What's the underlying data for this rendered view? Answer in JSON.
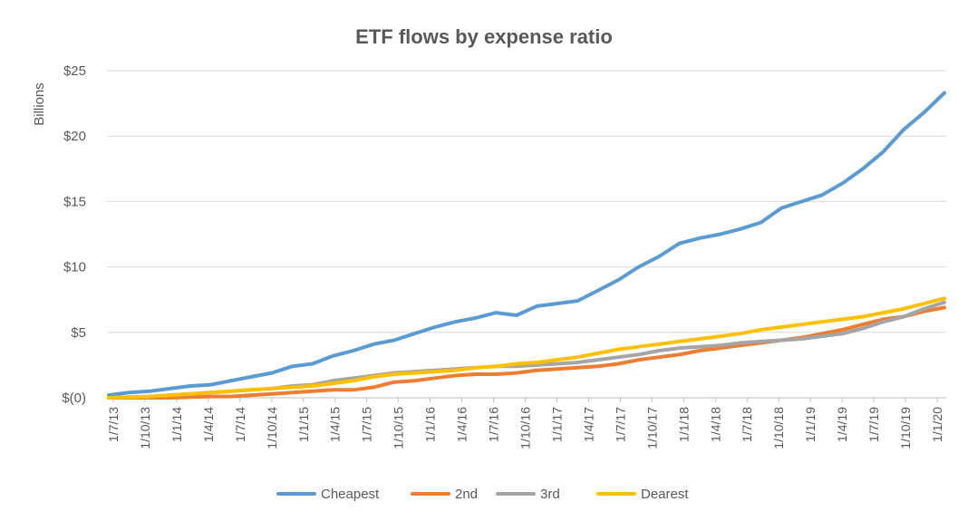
{
  "chart_data": {
    "type": "line",
    "title": "ETF flows by expense ratio",
    "xlabel": "",
    "ylabel": "Billions",
    "ylim": [
      0,
      25
    ],
    "y_ticks": [
      0,
      5,
      10,
      15,
      20,
      25
    ],
    "y_tick_labels": [
      "$(0)",
      "$5",
      "$10",
      "$15",
      "$20",
      "$25"
    ],
    "x_tick_labels": [
      "1/7/13",
      "1/10/13",
      "1/1/14",
      "1/4/14",
      "1/7/14",
      "1/10/14",
      "1/1/15",
      "1/4/15",
      "1/7/15",
      "1/10/15",
      "1/1/16",
      "1/4/16",
      "1/7/16",
      "1/10/16",
      "1/1/17",
      "1/4/17",
      "1/7/17",
      "1/10/17",
      "1/1/18",
      "1/4/18",
      "1/7/18",
      "1/10/18",
      "1/1/19",
      "1/4/19",
      "1/7/19",
      "1/10/19",
      "1/1/20"
    ],
    "legend_position": "bottom",
    "grid": "horizontal",
    "series": [
      {
        "name": "Cheapest",
        "color": "#5B9BD5",
        "values": [
          0.2,
          0.4,
          0.5,
          0.7,
          0.9,
          1.0,
          1.3,
          1.6,
          1.9,
          2.4,
          2.6,
          3.2,
          3.6,
          4.1,
          4.4,
          4.9,
          5.4,
          5.8,
          6.1,
          6.5,
          6.3,
          7.0,
          7.2,
          7.4,
          8.2,
          9.0,
          10.0,
          10.8,
          11.8,
          12.2,
          12.5,
          12.9,
          13.4,
          14.5,
          15.0,
          15.5,
          16.4,
          17.5,
          18.8,
          20.5,
          21.8,
          23.3
        ]
      },
      {
        "name": "2nd",
        "color": "#ED7D31",
        "values": [
          0.0,
          0.0,
          0.0,
          0.0,
          0.05,
          0.1,
          0.1,
          0.2,
          0.3,
          0.4,
          0.5,
          0.6,
          0.6,
          0.8,
          1.2,
          1.3,
          1.5,
          1.7,
          1.8,
          1.8,
          1.9,
          2.1,
          2.2,
          2.3,
          2.4,
          2.6,
          2.9,
          3.1,
          3.3,
          3.6,
          3.8,
          4.0,
          4.2,
          4.4,
          4.6,
          4.9,
          5.2,
          5.6,
          6.0,
          6.2,
          6.6,
          6.9
        ]
      },
      {
        "name": "3rd",
        "color": "#A5A5A5",
        "values": [
          0.0,
          0.05,
          0.1,
          0.2,
          0.3,
          0.4,
          0.5,
          0.6,
          0.7,
          0.9,
          1.0,
          1.3,
          1.5,
          1.7,
          1.9,
          2.0,
          2.1,
          2.2,
          2.3,
          2.4,
          2.4,
          2.5,
          2.6,
          2.7,
          2.9,
          3.1,
          3.3,
          3.6,
          3.8,
          3.9,
          4.0,
          4.2,
          4.3,
          4.4,
          4.5,
          4.7,
          4.9,
          5.3,
          5.8,
          6.2,
          6.8,
          7.3
        ]
      },
      {
        "name": "Dearest",
        "color": "#FFC000",
        "values": [
          0.0,
          0.05,
          0.1,
          0.2,
          0.3,
          0.4,
          0.5,
          0.6,
          0.7,
          0.8,
          0.9,
          1.1,
          1.3,
          1.6,
          1.8,
          1.9,
          2.0,
          2.1,
          2.3,
          2.4,
          2.6,
          2.7,
          2.9,
          3.1,
          3.4,
          3.7,
          3.9,
          4.1,
          4.3,
          4.5,
          4.7,
          4.9,
          5.2,
          5.4,
          5.6,
          5.8,
          6.0,
          6.2,
          6.5,
          6.8,
          7.2,
          7.6
        ]
      }
    ]
  }
}
